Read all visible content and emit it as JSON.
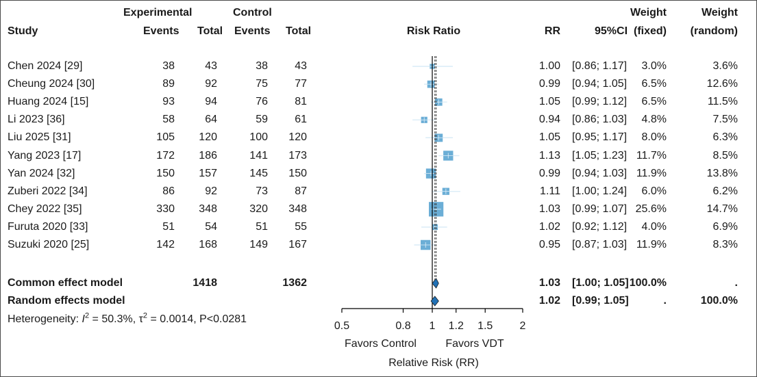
{
  "headers": {
    "experimental": "Experimental",
    "control": "Control",
    "study": "Study",
    "events": "Events",
    "total": "Total",
    "risk_ratio": "Risk Ratio",
    "rr": "RR",
    "ci": "95%CI",
    "weight": "Weight",
    "fixed": "(fixed)",
    "random": "(random)"
  },
  "chart_data": {
    "type": "forest",
    "x_scale": "log",
    "x_ticks": [
      "0.5",
      "0.8",
      "1",
      "1.2",
      "1.5",
      "2"
    ],
    "x_tick_values": [
      0.5,
      0.8,
      1,
      1.2,
      1.5,
      2
    ],
    "xlim": [
      0.5,
      2
    ],
    "left_label": "Favors Control",
    "right_label": "Favors VDT",
    "xlabel": "Relative Risk (RR)",
    "colors": {
      "box": "#6baed6",
      "diamond": "#2171b5",
      "line": "#000000"
    },
    "studies": [
      {
        "study": "Chen 2024 [29]",
        "e_events": 38,
        "e_total": 43,
        "c_events": 38,
        "c_total": 43,
        "rr": 1.0,
        "lower": 0.86,
        "upper": 1.17,
        "rr_text": "1.00",
        "ci_text": "[0.86; 1.17]",
        "w_fixed": "3.0%",
        "w_random": "3.6%",
        "wf": 3.0
      },
      {
        "study": "Cheung 2024 [30]",
        "e_events": 89,
        "e_total": 92,
        "c_events": 75,
        "c_total": 77,
        "rr": 0.99,
        "lower": 0.94,
        "upper": 1.05,
        "rr_text": "0.99",
        "ci_text": "[0.94; 1.05]",
        "w_fixed": "6.5%",
        "w_random": "12.6%",
        "wf": 6.5
      },
      {
        "study": "Huang 2024 [15]",
        "e_events": 93,
        "e_total": 94,
        "c_events": 76,
        "c_total": 81,
        "rr": 1.05,
        "lower": 0.99,
        "upper": 1.12,
        "rr_text": "1.05",
        "ci_text": "[0.99; 1.12]",
        "w_fixed": "6.5%",
        "w_random": "11.5%",
        "wf": 6.5
      },
      {
        "study": "Li 2023 [36]",
        "e_events": 58,
        "e_total": 64,
        "c_events": 59,
        "c_total": 61,
        "rr": 0.94,
        "lower": 0.86,
        "upper": 1.03,
        "rr_text": "0.94",
        "ci_text": "[0.86; 1.03]",
        "w_fixed": "4.8%",
        "w_random": "7.5%",
        "wf": 4.8
      },
      {
        "study": "Liu 2025 [31]",
        "e_events": 105,
        "e_total": 120,
        "c_events": 100,
        "c_total": 120,
        "rr": 1.05,
        "lower": 0.95,
        "upper": 1.17,
        "rr_text": "1.05",
        "ci_text": "[0.95; 1.17]",
        "w_fixed": "8.0%",
        "w_random": "6.3%",
        "wf": 8.0
      },
      {
        "study": "Yang 2023 [17]",
        "e_events": 172,
        "e_total": 186,
        "c_events": 141,
        "c_total": 173,
        "rr": 1.13,
        "lower": 1.05,
        "upper": 1.23,
        "rr_text": "1.13",
        "ci_text": "[1.05; 1.23]",
        "w_fixed": "11.7%",
        "w_random": "8.5%",
        "wf": 11.7
      },
      {
        "study": "Yan 2024 [32]",
        "e_events": 150,
        "e_total": 157,
        "c_events": 145,
        "c_total": 150,
        "rr": 0.99,
        "lower": 0.94,
        "upper": 1.03,
        "rr_text": "0.99",
        "ci_text": "[0.94; 1.03]",
        "w_fixed": "11.9%",
        "w_random": "13.8%",
        "wf": 11.9
      },
      {
        "study": "Zuberi 2022 [34]",
        "e_events": 86,
        "e_total": 92,
        "c_events": 73,
        "c_total": 87,
        "rr": 1.11,
        "lower": 1.0,
        "upper": 1.24,
        "rr_text": "1.11",
        "ci_text": "[1.00; 1.24]",
        "w_fixed": "6.0%",
        "w_random": "6.2%",
        "wf": 6.0
      },
      {
        "study": "Chey 2022 [35]",
        "e_events": 330,
        "e_total": 348,
        "c_events": 320,
        "c_total": 348,
        "rr": 1.03,
        "lower": 0.99,
        "upper": 1.07,
        "rr_text": "1.03",
        "ci_text": "[0.99; 1.07]",
        "w_fixed": "25.6%",
        "w_random": "14.7%",
        "wf": 25.6
      },
      {
        "study": "Furuta 2020 [33]",
        "e_events": 51,
        "e_total": 54,
        "c_events": 51,
        "c_total": 55,
        "rr": 1.02,
        "lower": 0.92,
        "upper": 1.12,
        "rr_text": "1.02",
        "ci_text": "[0.92; 1.12]",
        "w_fixed": "4.0%",
        "w_random": "6.9%",
        "wf": 4.0
      },
      {
        "study": "Suzuki 2020 [25]",
        "e_events": 142,
        "e_total": 168,
        "c_events": 149,
        "c_total": 167,
        "rr": 0.95,
        "lower": 0.87,
        "upper": 1.03,
        "rr_text": "0.95",
        "ci_text": "[0.87; 1.03]",
        "w_fixed": "11.9%",
        "w_random": "8.3%",
        "wf": 11.9
      }
    ],
    "common": {
      "label": "Common effect model",
      "e_total": "1418",
      "c_total": "1362",
      "rr": 1.03,
      "lower": 1.0,
      "upper": 1.05,
      "rr_text": "1.03",
      "ci_text": "[1.00; 1.05]",
      "w_fixed": "100.0%",
      "w_random": "."
    },
    "random": {
      "label": "Random effects model",
      "rr": 1.02,
      "lower": 0.99,
      "upper": 1.05,
      "rr_text": "1.02",
      "ci_text": "[0.99; 1.05]",
      "w_fixed": ".",
      "w_random": "100.0%"
    },
    "heterogeneity": {
      "prefix": "Heterogeneity: ",
      "i2_symbol": "I",
      "i2_sup": "2",
      "i2_value": " = 50.3%, ",
      "tau_symbol": "τ",
      "tau_sup": "2",
      "tau_value": " = 0.0014, P<0.0281"
    }
  }
}
